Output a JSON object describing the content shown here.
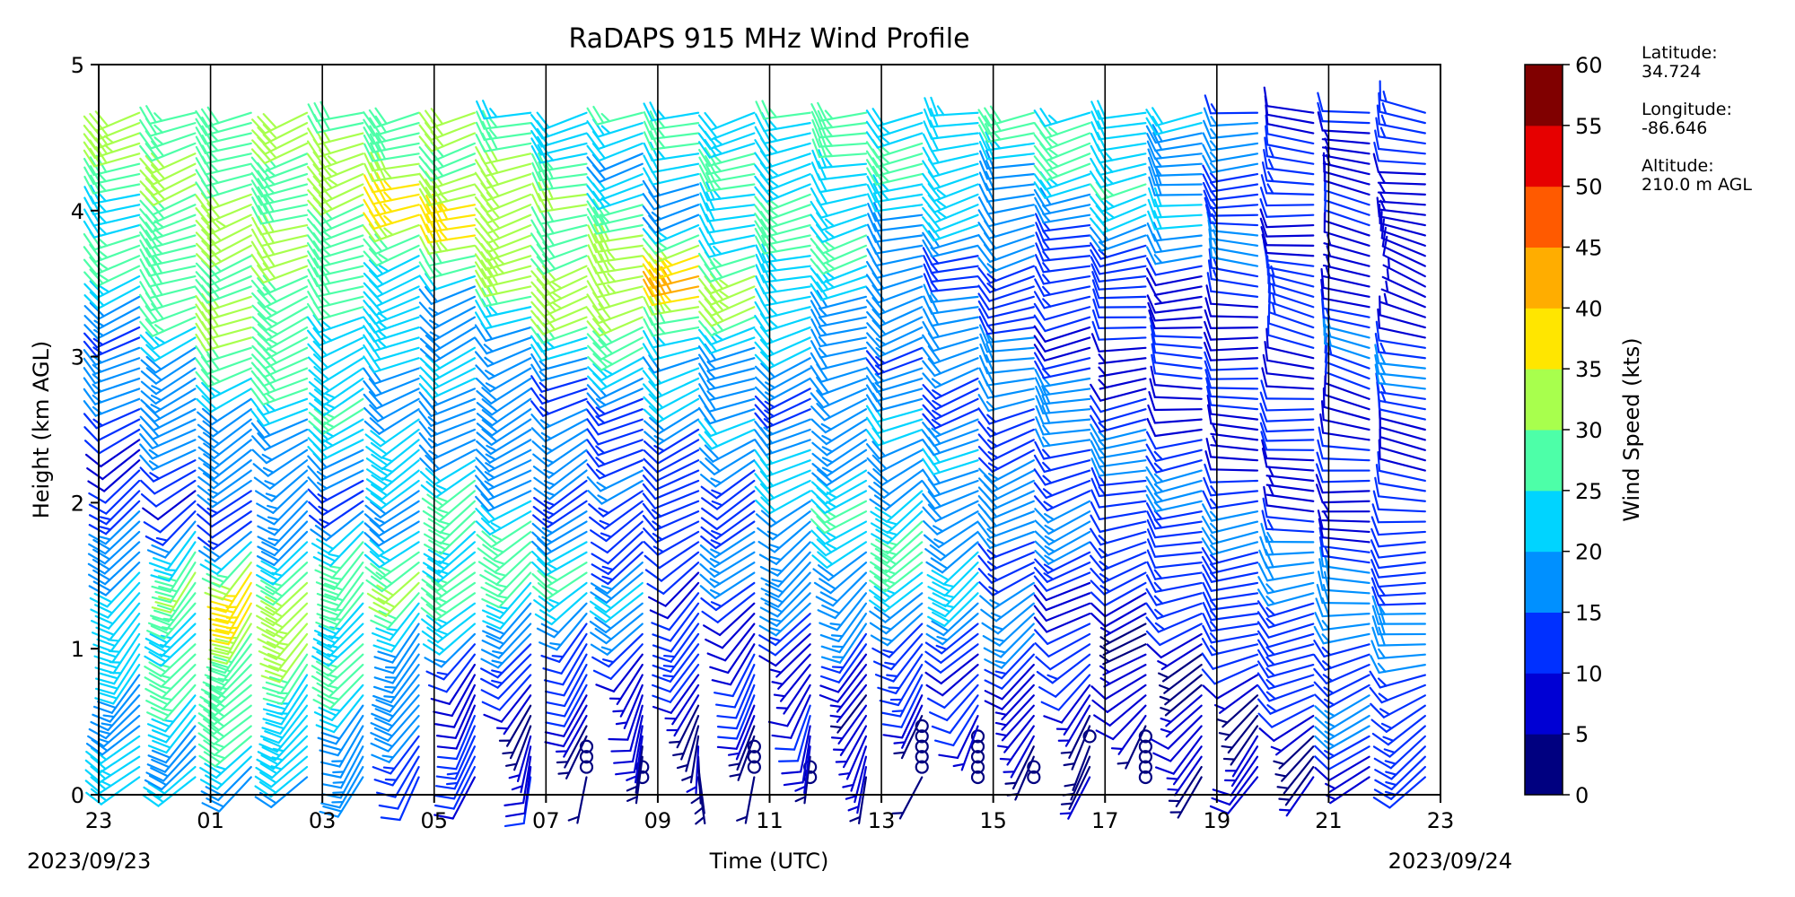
{
  "chart_data": {
    "type": "wind_barb_profile",
    "title": "RaDAPS 915 MHz Wind Profile",
    "xlabel": "Time (UTC)",
    "ylabel": "Height (km AGL)",
    "xlim": [
      "2023-09-23T23:00",
      "2023-09-24T23:00"
    ],
    "ylim": [
      0,
      5
    ],
    "x_ticks": [
      "23",
      "01",
      "03",
      "05",
      "07",
      "09",
      "11",
      "13",
      "15",
      "17",
      "19",
      "21",
      "23"
    ],
    "y_ticks": [
      "0",
      "1",
      "2",
      "3",
      "4",
      "5"
    ],
    "start_date_label": "2023/09/23",
    "end_date_label": "2023/09/24",
    "vertical_gridlines_every_hours": 2,
    "colorbar": {
      "label": "Wind Speed (kts)",
      "ticks": [
        "0",
        "5",
        "10",
        "15",
        "20",
        "25",
        "30",
        "35",
        "40",
        "45",
        "50",
        "55",
        "60"
      ],
      "colors": [
        "#000080",
        "#0000d4",
        "#0030ff",
        "#0090ff",
        "#00d4ff",
        "#4dffa8",
        "#a8ff4d",
        "#ffe600",
        "#ffad00",
        "#ff5a00",
        "#e60000",
        "#800000"
      ]
    },
    "barb_columns_utc": [
      "23:30",
      "00:30",
      "01:30",
      "02:30",
      "03:30",
      "04:30",
      "05:30",
      "06:30",
      "07:30",
      "08:30",
      "09:30",
      "10:30",
      "11:30",
      "12:30",
      "13:30",
      "14:30",
      "15:30",
      "16:30",
      "17:30",
      "18:30",
      "19:30",
      "20:30",
      "21:30",
      "22:30"
    ],
    "profiles": [
      {
        "time": "23:30",
        "heights_km": [
          0.2,
          0.6,
          1.0,
          1.5,
          2.0,
          2.5,
          3.0,
          3.5,
          4.0,
          4.5
        ],
        "speeds_kts": [
          18,
          20,
          22,
          24,
          10,
          12,
          18,
          22,
          24,
          30
        ],
        "directions_deg": [
          230,
          225,
          220,
          215,
          230,
          240,
          245,
          250,
          250,
          255
        ]
      },
      {
        "time": "01:30",
        "heights_km": [
          0.2,
          0.6,
          1.0,
          1.5,
          2.0,
          2.5,
          3.0,
          3.5
        ],
        "speeds_kts": [
          24,
          28,
          30,
          32,
          12,
          22,
          26,
          30
        ],
        "directions_deg": [
          230,
          225,
          220,
          215,
          230,
          240,
          245,
          250
        ]
      },
      {
        "time": "05:30",
        "heights_km": [
          0.2,
          0.6,
          1.0,
          1.5,
          2.0,
          2.5,
          3.0,
          3.5,
          4.0,
          4.5
        ],
        "speeds_kts": [
          8,
          10,
          14,
          30,
          22,
          18,
          20,
          22,
          36,
          28
        ],
        "directions_deg": [
          200,
          210,
          220,
          230,
          235,
          240,
          245,
          250,
          255,
          255
        ]
      },
      {
        "time": "09:30",
        "heights_km": [
          0.2,
          0.6,
          1.0,
          1.5,
          2.0,
          2.5,
          3.0,
          3.5,
          4.0
        ],
        "speeds_kts": [
          2,
          6,
          8,
          14,
          12,
          14,
          18,
          42,
          22
        ],
        "directions_deg": [
          180,
          200,
          215,
          230,
          240,
          245,
          250,
          255,
          255
        ]
      },
      {
        "time": "13:30",
        "heights_km": [
          0.3,
          0.6,
          1.0,
          1.5,
          2.0,
          2.5,
          3.0,
          3.5,
          4.0,
          4.5
        ],
        "speeds_kts": [
          2,
          10,
          12,
          22,
          24,
          20,
          18,
          14,
          22,
          26
        ],
        "directions_deg": [
          200,
          210,
          220,
          225,
          235,
          245,
          250,
          255,
          255,
          260
        ]
      },
      {
        "time": "17:30",
        "heights_km": [
          0.4,
          0.6,
          1.0,
          1.5,
          2.0,
          2.5,
          3.0,
          3.5,
          4.0,
          4.5
        ],
        "speeds_kts": [
          2,
          4,
          8,
          12,
          14,
          12,
          10,
          12,
          20,
          22
        ],
        "directions_deg": [
          200,
          220,
          240,
          250,
          255,
          260,
          265,
          260,
          255,
          255
        ]
      },
      {
        "time": "21:30",
        "heights_km": [
          0.2,
          0.6,
          1.0,
          1.5,
          2.0,
          2.5,
          3.0,
          3.5,
          4.0
        ],
        "speeds_kts": [
          10,
          14,
          14,
          16,
          10,
          10,
          12,
          8,
          10
        ],
        "directions_deg": [
          230,
          240,
          260,
          270,
          275,
          280,
          285,
          290,
          280
        ]
      }
    ]
  },
  "station": {
    "latitude_label": "Latitude:",
    "latitude": "34.724",
    "longitude_label": "Longitude:",
    "longitude": "-86.646",
    "altitude_label": "Altitude:",
    "altitude": "210.0 m AGL"
  }
}
